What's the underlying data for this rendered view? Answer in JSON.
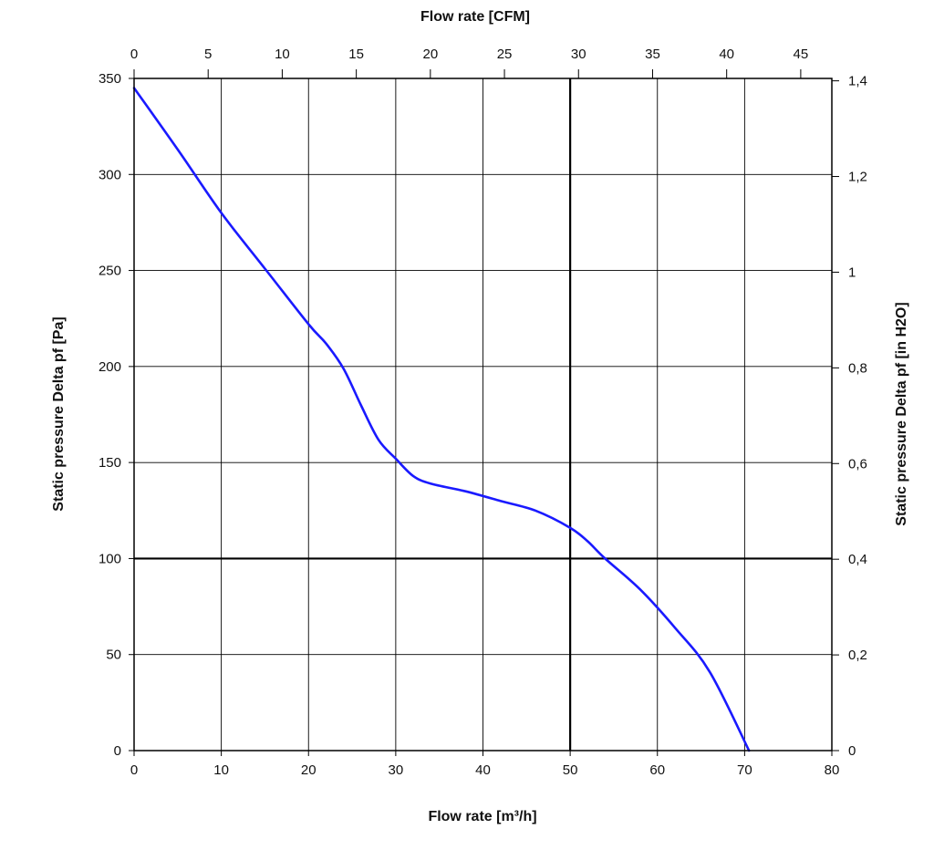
{
  "chart_data": {
    "type": "line",
    "title": "",
    "xlabel": "Flow rate [m³/h]",
    "ylabel": "Static pressure Delta pf [Pa]",
    "x_top_label": "Flow rate [CFM]",
    "y_right_label": "Static pressure Delta pf [in H2O]",
    "xlim": [
      0,
      80
    ],
    "ylim": [
      0,
      350
    ],
    "x_top_lim": [
      0,
      47.1
    ],
    "y_right_lim": [
      0,
      1.405
    ],
    "x_ticks": [
      "0",
      "10",
      "20",
      "30",
      "40",
      "50",
      "60",
      "70",
      "80"
    ],
    "y_ticks": [
      "0",
      "50",
      "100",
      "150",
      "200",
      "250",
      "300",
      "350"
    ],
    "x_top_ticks": [
      {
        "value": 0,
        "label": "0"
      },
      {
        "value": 5,
        "label": "5"
      },
      {
        "value": 10,
        "label": "10"
      },
      {
        "value": 15,
        "label": "15"
      },
      {
        "value": 20,
        "label": "20"
      },
      {
        "value": 25,
        "label": "25"
      },
      {
        "value": 30,
        "label": "30"
      },
      {
        "value": 35,
        "label": "35"
      },
      {
        "value": 40,
        "label": "40"
      },
      {
        "value": 45,
        "label": "45"
      }
    ],
    "y_right_ticks": [
      {
        "value": 0,
        "label": "0"
      },
      {
        "value": 0.2,
        "label": "0,2"
      },
      {
        "value": 0.4,
        "label": "0,4"
      },
      {
        "value": 0.6,
        "label": "0,6"
      },
      {
        "value": 0.8,
        "label": "0,8"
      },
      {
        "value": 1.0,
        "label": "1"
      },
      {
        "value": 1.2,
        "label": "1,2"
      },
      {
        "value": 1.4,
        "label": "1,4"
      }
    ],
    "grid": true,
    "emphasized_gridlines": {
      "x": [
        50
      ],
      "y": [
        100
      ]
    },
    "series": [
      {
        "color": "#1a1aff",
        "x": [
          0,
          5,
          10,
          15,
          20,
          22,
          24,
          26,
          28,
          30,
          32,
          34,
          38,
          42,
          46,
          50,
          52,
          54,
          58,
          62,
          66,
          70.5
        ],
        "y": [
          345,
          313,
          280,
          251,
          222,
          212,
          199,
          180,
          162,
          152,
          143,
          139,
          135,
          130,
          125,
          116,
          109,
          100,
          84,
          64,
          41,
          0
        ]
      }
    ]
  }
}
